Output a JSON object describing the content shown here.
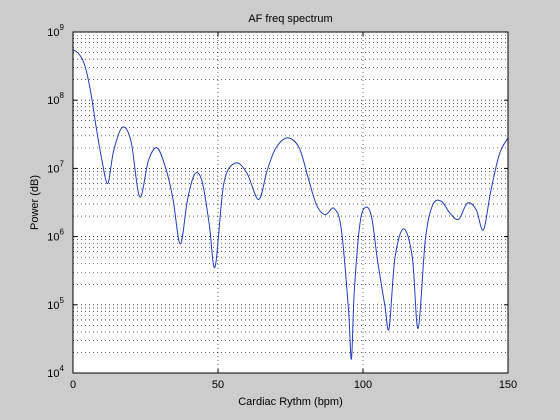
{
  "chart_data": {
    "type": "line",
    "title": "AF freq spectrum",
    "xlabel": "Cardiac Rythm (bpm)",
    "ylabel": "Power (dB)",
    "xlim": [
      0,
      150
    ],
    "ylim": [
      10000,
      1000000000
    ],
    "yscale": "log",
    "grid": true,
    "x_ticks": [
      {
        "value": 0,
        "label": "0"
      },
      {
        "value": 50,
        "label": "50"
      },
      {
        "value": 100,
        "label": "100"
      },
      {
        "value": 150,
        "label": "150"
      }
    ],
    "y_ticks": [
      {
        "base": "10",
        "exp": "4",
        "value": 10000
      },
      {
        "base": "10",
        "exp": "5",
        "value": 100000
      },
      {
        "base": "10",
        "exp": "6",
        "value": 1000000
      },
      {
        "base": "10",
        "exp": "7",
        "value": 10000000
      },
      {
        "base": "10",
        "exp": "8",
        "value": 100000000
      },
      {
        "base": "10",
        "exp": "9",
        "value": 1000000000
      }
    ],
    "series": [
      {
        "color": "#1f3fbf",
        "x": [
          0,
          2,
          4,
          6,
          8,
          10,
          12,
          14,
          17,
          20,
          23,
          26,
          29,
          32,
          34.5,
          37,
          39.5,
          42,
          44.5,
          47,
          49,
          52,
          56,
          60,
          64,
          67,
          70,
          74,
          78,
          81,
          84,
          87,
          90,
          92.5,
          95,
          96,
          97,
          99,
          101,
          103,
          105,
          107.5,
          109,
          111,
          114,
          117,
          119,
          121.5,
          124,
          127,
          130,
          133,
          136,
          139,
          141.5,
          144,
          147,
          150
        ],
        "y": [
          550000000,
          480000000,
          330000000,
          140000000,
          40000000,
          13000000,
          6000000,
          18000000,
          40000000,
          25000000,
          3800000,
          13000000,
          20000000,
          10000000,
          3500000,
          780000,
          3500000,
          8300000,
          6500000,
          1500000,
          360000,
          6000000,
          12000000,
          8500000,
          3500000,
          9500000,
          20000000,
          28000000,
          20000000,
          7500000,
          2900000,
          2100000,
          2600000,
          1300000,
          85000,
          16000,
          160000,
          1600000,
          2700000,
          1900000,
          450000,
          100000,
          45000,
          480000,
          1300000,
          500000,
          45000,
          900000,
          2900000,
          3300000,
          2200000,
          1800000,
          3100000,
          2500000,
          1250000,
          4500000,
          16000000,
          28000000
        ]
      }
    ]
  }
}
